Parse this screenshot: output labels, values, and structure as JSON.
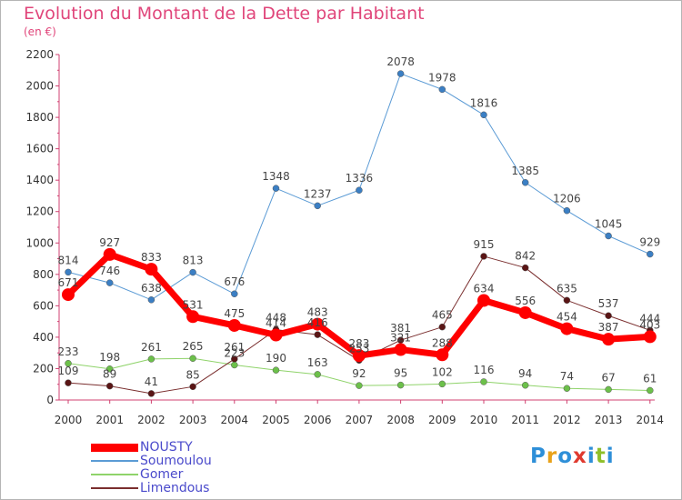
{
  "header": {
    "title": "Evolution du Montant de la Dette par Habitant",
    "unit": "(en €)"
  },
  "brand": {
    "letters": [
      "P",
      "r",
      "o",
      "x",
      "i",
      "t",
      "i"
    ],
    "colors": [
      "#2e8fd8",
      "#e8a21a",
      "#2e8fd8",
      "#e03a2f",
      "#2e8fd8",
      "#8fbf2a",
      "#2e8fd8"
    ]
  },
  "chart_data": {
    "type": "line",
    "categories": [
      "2000",
      "2001",
      "2002",
      "2003",
      "2004",
      "2005",
      "2006",
      "2007",
      "2008",
      "2009",
      "2010",
      "2011",
      "2012",
      "2013",
      "2014"
    ],
    "ylim": [
      0,
      2200
    ],
    "yticks": [
      0,
      200,
      400,
      600,
      800,
      1000,
      1200,
      1400,
      1600,
      1800,
      2000,
      2200
    ],
    "grid": false,
    "legend_position": "bottom-left",
    "series": [
      {
        "name": "Soumoulou",
        "color": "#5b9bd5",
        "point_color": "#3b7fc4",
        "width": 1,
        "r": 3.5,
        "values": [
          814,
          746,
          638,
          813,
          676,
          1348,
          1237,
          1336,
          2078,
          1978,
          1816,
          1385,
          1206,
          1045,
          929
        ],
        "labels": [
          "814",
          "746",
          "638",
          "813",
          "676",
          "1348",
          "1237",
          "1336",
          "2078",
          "1978",
          "1816",
          "1385",
          "1206",
          "1045",
          "929"
        ]
      },
      {
        "name": "Gomer",
        "color": "#8fd36a",
        "point_color": "#6cc04a",
        "width": 1,
        "r": 3.5,
        "values": [
          233,
          198,
          261,
          265,
          223,
          190,
          163,
          92,
          95,
          102,
          116,
          94,
          74,
          67,
          61
        ],
        "labels": [
          "233",
          "198",
          "261",
          "265",
          "223",
          "190",
          "163",
          "92",
          "95",
          "102",
          "116",
          "94",
          "74",
          "67",
          "61"
        ]
      },
      {
        "name": "Limendous",
        "color": "#7a2e2e",
        "point_color": "#5a1515",
        "width": 1,
        "r": 3.5,
        "values": [
          109,
          89,
          41,
          85,
          261,
          448,
          416,
          253,
          381,
          465,
          915,
          842,
          635,
          537,
          444
        ],
        "labels": [
          "109",
          "89",
          "41",
          "85",
          "261",
          "448",
          "416",
          "253",
          "381",
          "465",
          "915",
          "842",
          "635",
          "537",
          "444"
        ]
      },
      {
        "name": "NOUSTY",
        "color": "#ff0000",
        "point_color": "#ff0000",
        "width": 7,
        "r": 7,
        "values": [
          671,
          927,
          833,
          531,
          475,
          414,
          483,
          283,
          321,
          288,
          634,
          556,
          454,
          387,
          403
        ],
        "labels": [
          "671",
          "927",
          "833",
          "531",
          "475",
          "414",
          "483",
          "283",
          "321",
          "288",
          "634",
          "556",
          "454",
          "387",
          "403"
        ]
      }
    ]
  },
  "legend": [
    {
      "name": "NOUSTY",
      "color": "#ff0000",
      "thickness": 9
    },
    {
      "name": "Soumoulou",
      "color": "#5b9bd5",
      "thickness": 2
    },
    {
      "name": "Gomer",
      "color": "#8fd36a",
      "thickness": 2
    },
    {
      "name": "Limendous",
      "color": "#7a2e2e",
      "thickness": 2
    }
  ]
}
